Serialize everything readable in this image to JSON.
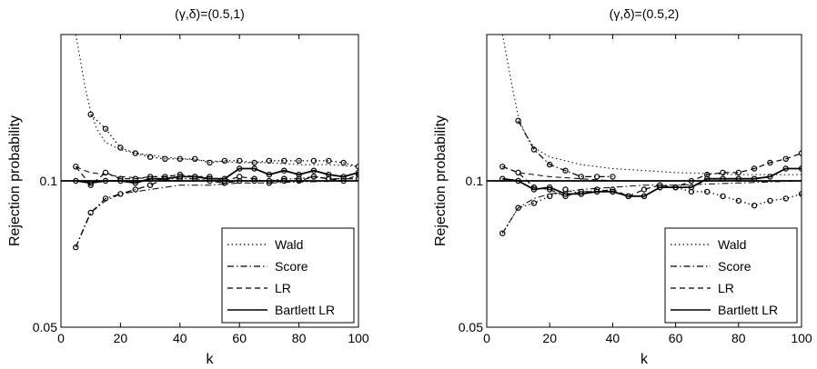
{
  "chart_data": [
    {
      "type": "line",
      "title": "(γ,δ)=(0.5,1)",
      "xlabel": "k",
      "ylabel": "Rejection probability",
      "xlim": [
        0,
        100
      ],
      "ylim": [
        0.05,
        0.2
      ],
      "yscale": "log",
      "xticks": [
        "0",
        "20",
        "40",
        "60",
        "80",
        "100"
      ],
      "yticks": [
        "0.05",
        "0.1"
      ],
      "grid": false,
      "legend_position": "bottom-right",
      "reference_line": 0.1,
      "series": [
        {
          "name": "Wald",
          "style": "dotted",
          "markers": true,
          "smooth": [
            [
              5,
              0.2
            ],
            [
              6,
              0.185
            ],
            [
              8,
              0.157
            ],
            [
              10,
              0.139
            ],
            [
              12,
              0.128
            ],
            [
              15,
              0.12
            ],
            [
              20,
              0.116
            ],
            [
              25,
              0.114
            ],
            [
              30,
              0.113
            ],
            [
              40,
              0.111
            ],
            [
              50,
              0.11
            ],
            [
              60,
              0.109
            ],
            [
              70,
              0.109
            ],
            [
              80,
              0.108
            ],
            [
              90,
              0.108
            ],
            [
              100,
              0.107
            ]
          ],
          "x": [
            10,
            15,
            20,
            25,
            30,
            35,
            40,
            45,
            50,
            55,
            60,
            65,
            70,
            75,
            80,
            85,
            90,
            95,
            100
          ],
          "values": [
            0.137,
            0.128,
            0.117,
            0.114,
            0.112,
            0.111,
            0.111,
            0.111,
            0.109,
            0.11,
            0.11,
            0.109,
            0.11,
            0.11,
            0.11,
            0.11,
            0.11,
            0.109,
            0.107
          ]
        },
        {
          "name": "Score",
          "style": "dashdot",
          "markers": true,
          "smooth": [
            [
              5,
              0.073
            ],
            [
              8,
              0.081
            ],
            [
              10,
              0.086
            ],
            [
              15,
              0.091
            ],
            [
              20,
              0.094
            ],
            [
              30,
              0.096
            ],
            [
              40,
              0.098
            ],
            [
              50,
              0.098
            ],
            [
              60,
              0.099
            ],
            [
              70,
              0.099
            ],
            [
              80,
              0.0995
            ],
            [
              100,
              0.1
            ]
          ],
          "x": [
            5,
            10,
            15,
            20,
            25,
            30,
            35,
            40,
            45,
            50,
            55,
            60,
            65,
            70,
            75,
            80,
            85,
            90,
            95,
            100
          ],
          "values": [
            0.073,
            0.086,
            0.092,
            0.094,
            0.096,
            0.098,
            0.101,
            0.101,
            0.101,
            0.1,
            0.099,
            0.1,
            0.1,
            0.1,
            0.101,
            0.101,
            0.102,
            0.101,
            0.101,
            0.101
          ]
        },
        {
          "name": "LR",
          "style": "dashed",
          "markers": true,
          "smooth": [
            [
              5,
              0.107
            ],
            [
              8,
              0.105
            ],
            [
              10,
              0.104
            ],
            [
              15,
              0.103
            ],
            [
              20,
              0.102
            ],
            [
              30,
              0.101
            ],
            [
              40,
              0.1
            ],
            [
              60,
              0.1
            ],
            [
              80,
              0.1
            ],
            [
              100,
              0.1
            ]
          ],
          "x": [
            5,
            10,
            15,
            20,
            25,
            30,
            35,
            40,
            45,
            50,
            55,
            60,
            65,
            70,
            75,
            80,
            85,
            90,
            95,
            100
          ],
          "values": [
            0.107,
            0.098,
            0.104,
            0.101,
            0.101,
            0.102,
            0.102,
            0.103,
            0.102,
            0.102,
            0.1,
            0.102,
            0.101,
            0.099,
            0.1,
            0.1,
            0.102,
            0.101,
            0.1,
            0.103
          ]
        },
        {
          "name": "Bartlett LR",
          "style": "solid",
          "markers": true,
          "smooth": [
            [
              0,
              0.1
            ],
            [
              100,
              0.1
            ]
          ],
          "x": [
            5,
            10,
            15,
            20,
            25,
            30,
            35,
            40,
            45,
            50,
            55,
            60,
            65,
            70,
            75,
            80,
            85,
            90,
            95,
            100
          ],
          "values": [
            0.1,
            0.099,
            0.1,
            0.1,
            0.099,
            0.101,
            0.101,
            0.102,
            0.102,
            0.101,
            0.101,
            0.106,
            0.106,
            0.103,
            0.105,
            0.103,
            0.105,
            0.103,
            0.102,
            0.104
          ]
        }
      ]
    },
    {
      "type": "line",
      "title": "(γ,δ)=(0.5,2)",
      "xlabel": "k",
      "ylabel": "Rejection probability",
      "xlim": [
        0,
        100
      ],
      "ylim": [
        0.05,
        0.2
      ],
      "yscale": "log",
      "xticks": [
        "0",
        "20",
        "40",
        "60",
        "80",
        "100"
      ],
      "yticks": [
        "0.05",
        "0.1"
      ],
      "grid": false,
      "legend_position": "bottom-right",
      "reference_line": 0.1,
      "series": [
        {
          "name": "Wald",
          "style": "dotted",
          "markers": true,
          "smooth": [
            [
              5,
              0.2
            ],
            [
              6,
              0.185
            ],
            [
              8,
              0.157
            ],
            [
              10,
              0.136
            ],
            [
              12,
              0.126
            ],
            [
              15,
              0.117
            ],
            [
              20,
              0.112
            ],
            [
              30,
              0.108
            ],
            [
              40,
              0.106
            ],
            [
              50,
              0.105
            ],
            [
              60,
              0.104
            ],
            [
              80,
              0.103
            ],
            [
              100,
              0.103
            ]
          ],
          "x": [
            5,
            10,
            15,
            20,
            25,
            30,
            35,
            40,
            45,
            50,
            55,
            60,
            65,
            70,
            75,
            80,
            85,
            90,
            95,
            100
          ],
          "values": [
            0.078,
            0.088,
            0.09,
            0.093,
            0.096,
            0.094,
            0.096,
            0.095,
            0.093,
            0.093,
            0.097,
            0.097,
            0.095,
            0.095,
            0.093,
            0.091,
            0.089,
            0.091,
            0.092,
            0.094
          ]
        },
        {
          "name": "Score",
          "style": "dashdot",
          "markers": true,
          "smooth": [
            [
              5,
              0.078
            ],
            [
              10,
              0.088
            ],
            [
              15,
              0.092
            ],
            [
              20,
              0.094
            ],
            [
              30,
              0.096
            ],
            [
              40,
              0.097
            ],
            [
              50,
              0.098
            ],
            [
              60,
              0.098
            ],
            [
              80,
              0.099
            ],
            [
              100,
              0.1
            ]
          ],
          "x": [
            10,
            15,
            20,
            25,
            30,
            35,
            40
          ],
          "values": [
            0.133,
            0.116,
            0.108,
            0.105,
            0.102,
            0.102,
            0.102
          ]
        },
        {
          "name": "LR",
          "style": "dashed",
          "markers": true,
          "smooth": [
            [
              5,
              0.107
            ],
            [
              10,
              0.104
            ],
            [
              20,
              0.102
            ],
            [
              30,
              0.101
            ],
            [
              40,
              0.1
            ],
            [
              60,
              0.1
            ],
            [
              100,
              0.1
            ]
          ],
          "x": [
            5,
            10,
            15,
            20,
            25,
            30,
            35,
            40,
            45,
            50,
            55,
            60,
            65,
            70,
            75,
            80,
            85,
            90,
            95,
            100
          ],
          "values": [
            0.107,
            0.104,
            0.097,
            0.096,
            0.093,
            0.095,
            0.095,
            0.096,
            0.093,
            0.096,
            0.098,
            0.097,
            0.1,
            0.103,
            0.104,
            0.104,
            0.106,
            0.109,
            0.111,
            0.114
          ]
        },
        {
          "name": "Bartlett LR",
          "style": "solid",
          "markers": true,
          "smooth": [
            [
              0,
              0.1
            ],
            [
              100,
              0.1
            ]
          ],
          "x": [
            5,
            10,
            15,
            20,
            25,
            30,
            35,
            40,
            45,
            50,
            55,
            60,
            65,
            70,
            75,
            80,
            85,
            90,
            95,
            100
          ],
          "values": [
            0.101,
            0.1,
            0.096,
            0.097,
            0.094,
            0.094,
            0.095,
            0.095,
            0.093,
            0.093,
            0.097,
            0.097,
            0.097,
            0.101,
            0.101,
            0.101,
            0.101,
            0.102,
            0.106,
            0.106
          ]
        }
      ]
    }
  ]
}
